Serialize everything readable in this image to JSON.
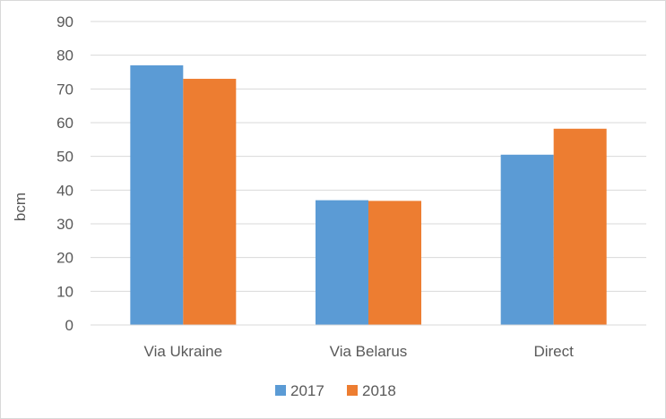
{
  "chart_data": {
    "type": "bar",
    "categories": [
      "Via Ukraine",
      "Via Belarus",
      "Direct"
    ],
    "series": [
      {
        "name": "2017",
        "values": [
          77,
          37,
          50.5
        ],
        "color": "#5b9bd5"
      },
      {
        "name": "2018",
        "values": [
          73,
          36.8,
          58.2
        ],
        "color": "#ed7d31"
      }
    ],
    "ylabel": "bcm",
    "ylim": [
      0,
      90
    ],
    "yticks": [
      "0",
      "10",
      "20",
      "30",
      "40",
      "50",
      "60",
      "70",
      "80",
      "90"
    ],
    "grid": true,
    "legend_position": "bottom"
  }
}
